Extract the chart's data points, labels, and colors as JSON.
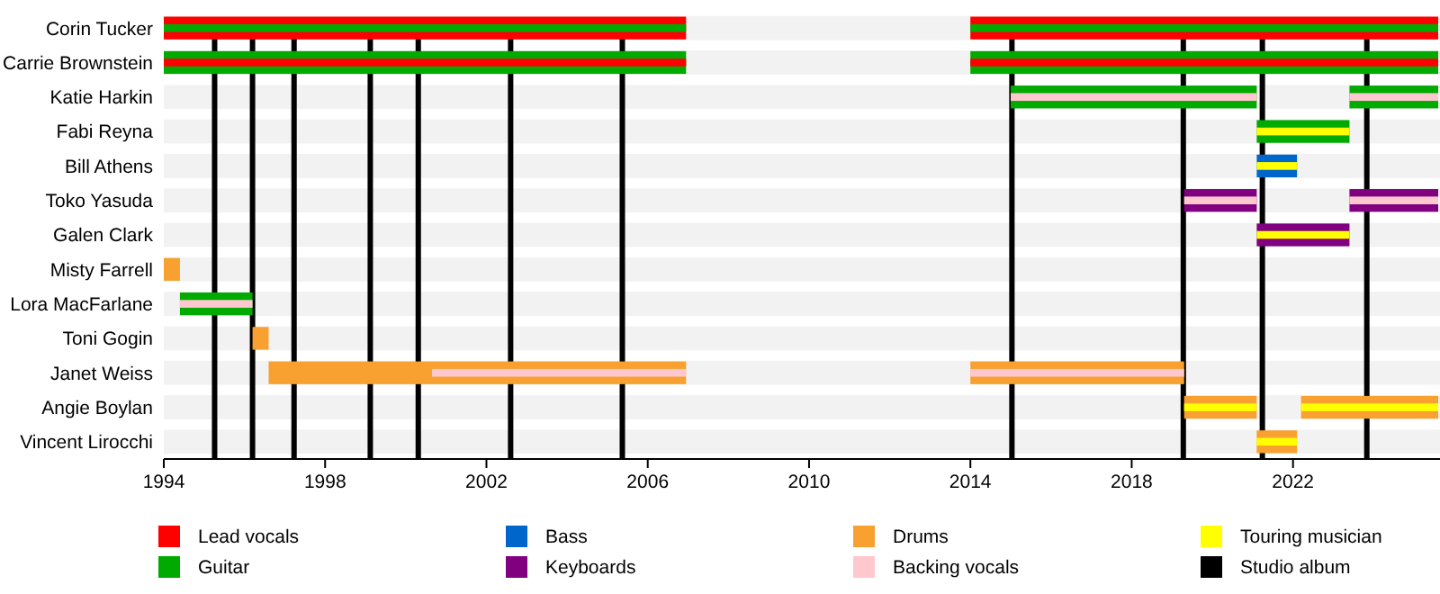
{
  "chart_data": {
    "type": "bar",
    "orientation": "horizontal",
    "legend": "bottom",
    "categories": [
      "Corin Tucker",
      "Carrie Brownstein",
      "Katie Harkin",
      "Fabi Reyna",
      "Bill Athens",
      "Toko Yasuda",
      "Galen Clark",
      "Misty Farrell",
      "Lora MacFarlane",
      "Toni Gogin",
      "Janet Weiss",
      "Angie Boylan",
      "Vincent Lirocchi"
    ],
    "xlim": [
      1994,
      2025.6
    ],
    "xticks": [
      1994,
      1998,
      2002,
      2006,
      2010,
      2014,
      2018,
      2022
    ],
    "series": [
      {
        "name": "Lead vocals",
        "color": "#ff0000",
        "base": [
          1994,
          null,
          null,
          null,
          null,
          null,
          null,
          null,
          null,
          null,
          null,
          null,
          null
        ],
        "values": [
          12.95,
          null,
          null,
          null,
          null,
          null,
          null,
          null,
          null,
          null,
          null,
          null,
          null
        ]
      },
      {
        "color": "#ff0000",
        "base": [
          2014,
          null,
          null,
          null,
          null,
          null,
          null,
          null,
          null,
          null,
          null,
          null,
          null
        ],
        "values": [
          11.6,
          null,
          null,
          null,
          null,
          null,
          null,
          null,
          null,
          null,
          null,
          null,
          null
        ]
      },
      {
        "name": "Guitar",
        "color": "#00aa00",
        "base": [
          null,
          1994,
          2015.0,
          2021.1,
          null,
          null,
          null,
          null,
          1994.4,
          null,
          null,
          null,
          null
        ],
        "values": [
          null,
          12.95,
          6.1,
          2.3,
          null,
          null,
          null,
          null,
          1.8,
          null,
          null,
          null,
          null
        ]
      },
      {
        "color": "#00aa00",
        "base": [
          null,
          2014,
          2023.4,
          null,
          null,
          null,
          null,
          null,
          null,
          null,
          null,
          null,
          null
        ],
        "values": [
          null,
          11.6,
          2.2,
          null,
          null,
          null,
          null,
          null,
          null,
          null,
          null,
          null,
          null
        ]
      },
      {
        "name": "Bass",
        "color": "#0066cc",
        "base": [
          null,
          null,
          null,
          null,
          2021.1,
          null,
          null,
          null,
          null,
          null,
          null,
          null,
          null
        ],
        "values": [
          null,
          null,
          null,
          null,
          1.0,
          null,
          null,
          null,
          null,
          null,
          null,
          null,
          null
        ]
      },
      {
        "name": "Keyboards",
        "color": "#800080",
        "base": [
          null,
          null,
          null,
          null,
          null,
          2019.3,
          2021.1,
          null,
          null,
          null,
          null,
          null,
          null
        ],
        "values": [
          null,
          null,
          null,
          null,
          null,
          1.8,
          2.3,
          null,
          null,
          null,
          null,
          null,
          null
        ]
      },
      {
        "color": "#800080",
        "base": [
          null,
          null,
          null,
          null,
          null,
          2023.4,
          null,
          null,
          null,
          null,
          null,
          null,
          null
        ],
        "values": [
          null,
          null,
          null,
          null,
          null,
          2.2,
          null,
          null,
          null,
          null,
          null,
          null,
          null
        ]
      },
      {
        "name": "Drums",
        "color": "#f8a030",
        "base": [
          null,
          null,
          null,
          null,
          null,
          null,
          null,
          1994,
          null,
          1996.2,
          1996.6,
          2019.3,
          2021.1
        ],
        "values": [
          null,
          null,
          null,
          null,
          null,
          null,
          null,
          0.4,
          null,
          0.4,
          10.35,
          1.8,
          1.0
        ]
      },
      {
        "color": "#f8a030",
        "base": [
          null,
          null,
          null,
          null,
          null,
          null,
          null,
          null,
          null,
          null,
          2014,
          2022.2,
          null
        ],
        "values": [
          null,
          null,
          null,
          null,
          null,
          null,
          null,
          null,
          null,
          null,
          5.3,
          3.4,
          null
        ]
      },
      {
        "name": "Backing vocals",
        "color": "#ffc8cf",
        "base": [
          null,
          null,
          2015.0,
          null,
          null,
          2019.3,
          null,
          null,
          1994.4,
          null,
          2000.65,
          null,
          null
        ],
        "values": [
          null,
          null,
          6.1,
          null,
          null,
          1.8,
          null,
          null,
          1.8,
          null,
          6.3,
          null,
          null
        ]
      },
      {
        "color": "#ffc8cf",
        "base": [
          null,
          null,
          2023.4,
          null,
          null,
          2023.4,
          null,
          null,
          null,
          null,
          2014,
          null,
          null
        ],
        "values": [
          null,
          null,
          2.2,
          null,
          null,
          2.2,
          null,
          null,
          null,
          null,
          5.3,
          null,
          null
        ]
      },
      {
        "name": "Touring musician",
        "color": "#ffff00",
        "base": [
          null,
          null,
          null,
          2021.1,
          2021.1,
          null,
          2021.1,
          null,
          null,
          null,
          null,
          2019.3,
          2021.1
        ],
        "values": [
          null,
          null,
          null,
          2.3,
          1.0,
          null,
          2.3,
          null,
          null,
          null,
          null,
          1.8,
          1.0
        ]
      },
      {
        "color": "#ffff00",
        "base": [
          null,
          null,
          null,
          null,
          null,
          null,
          null,
          null,
          null,
          null,
          null,
          2022.2,
          null
        ],
        "values": [
          null,
          null,
          null,
          null,
          null,
          null,
          null,
          null,
          null,
          null,
          null,
          3.4,
          null
        ]
      },
      {
        "color": "#ff0000",
        "base": [
          null,
          1994,
          null,
          null,
          null,
          null,
          null,
          null,
          null,
          null,
          null,
          null,
          null
        ],
        "values": [
          null,
          12.95,
          null,
          null,
          null,
          null,
          null,
          null,
          null,
          null,
          null,
          null,
          null
        ]
      },
      {
        "color": "#ff0000",
        "base": [
          null,
          2014,
          null,
          null,
          null,
          null,
          null,
          null,
          null,
          null,
          null,
          null,
          null
        ],
        "values": [
          null,
          11.6,
          null,
          null,
          null,
          null,
          null,
          null,
          null,
          null,
          null,
          null,
          null
        ]
      },
      {
        "color": "#00aa00",
        "base": [
          1994,
          null,
          null,
          null,
          null,
          null,
          null,
          null,
          null,
          null,
          null,
          null,
          null
        ],
        "values": [
          12.95,
          null,
          null,
          null,
          null,
          null,
          null,
          null,
          null,
          null,
          null,
          null,
          null
        ]
      },
      {
        "color": "#00aa00",
        "base": [
          2014,
          null,
          null,
          null,
          null,
          null,
          null,
          null,
          null,
          null,
          null,
          null,
          null
        ],
        "values": [
          11.6,
          null,
          null,
          null,
          null,
          null,
          null,
          null,
          null,
          null,
          null,
          null,
          null
        ]
      }
    ],
    "ref_lines": [
      {
        "axis": "x",
        "value": 1995.26,
        "label": "Studio album",
        "color": "#000000"
      },
      {
        "axis": "x",
        "value": 1996.2,
        "color": "#000000"
      },
      {
        "axis": "x",
        "value": 1997.23,
        "color": "#000000"
      },
      {
        "axis": "x",
        "value": 1999.12,
        "color": "#000000"
      },
      {
        "axis": "x",
        "value": 2000.31,
        "color": "#000000"
      },
      {
        "axis": "x",
        "value": 2002.6,
        "color": "#000000"
      },
      {
        "axis": "x",
        "value": 2005.37,
        "color": "#000000"
      },
      {
        "axis": "x",
        "value": 2015.03,
        "color": "#000000"
      },
      {
        "axis": "x",
        "value": 2019.28,
        "color": "#000000"
      },
      {
        "axis": "x",
        "value": 2021.24,
        "color": "#000000"
      },
      {
        "axis": "x",
        "value": 2023.83,
        "color": "#000000"
      }
    ]
  }
}
